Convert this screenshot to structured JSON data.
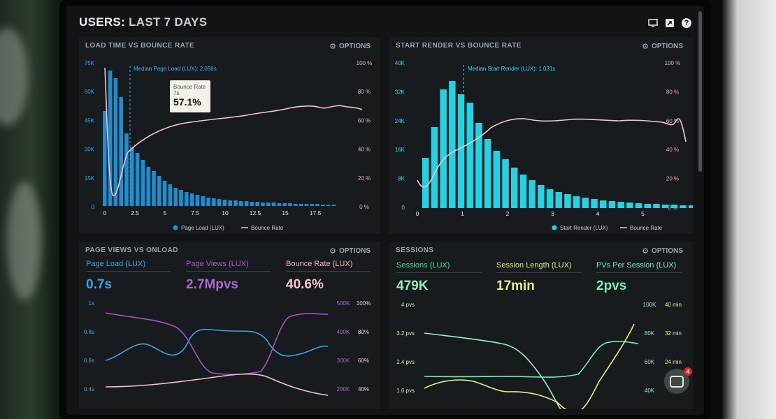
{
  "header": {
    "title_prefix": "USERS:",
    "title_suffix": "LAST 7 DAYS"
  },
  "top_icons": [
    "monitor-icon",
    "share-icon",
    "help-icon"
  ],
  "options_label": "OPTIONS",
  "panels": {
    "load_time": {
      "title": "LOAD TIME VS BOUNCE RATE",
      "median_label": "Median Page Load (LUX): 2.056s",
      "tooltip": {
        "label": "Bounce Rate",
        "sub": "7s",
        "value": "57.1%"
      },
      "left_ticks": [
        "75K",
        "60K",
        "45K",
        "30K",
        "15K",
        "0"
      ],
      "right_ticks": [
        "100 %",
        "80 %",
        "60 %",
        "40 %",
        "20 %",
        "0 %"
      ],
      "x_ticks": [
        "0",
        "2.5",
        "5",
        "7.5",
        "10",
        "12.5",
        "15",
        "17.5"
      ],
      "legend": [
        "Page Load (LUX)",
        "Bounce Rate"
      ]
    },
    "start_render": {
      "title": "START RENDER VS BOUNCE RATE",
      "median_label": "Median Start Render (LUX): 1.031s",
      "left_ticks": [
        "40K",
        "32K",
        "24K",
        "16K",
        "8K",
        "0"
      ],
      "right_ticks": [
        "100 %",
        "80 %",
        "60 %",
        "40 %",
        "20 %",
        "0 %"
      ],
      "x_ticks": [
        "0",
        "1",
        "2",
        "3",
        "4",
        "5"
      ],
      "legend": [
        "Start Render (LUX)",
        "Bounce Rate"
      ]
    },
    "page_views": {
      "title": "PAGE VIEWS VS ONLOAD",
      "metrics": [
        {
          "label": "Page Load (LUX)",
          "value": "0.7s"
        },
        {
          "label": "Page Views (LUX)",
          "value": "2.7Mpvs"
        },
        {
          "label": "Bounce Rate (LUX)",
          "value": "40.6%"
        }
      ],
      "left_ticks": [
        "1s",
        "0.8s",
        "0.6s",
        "0.4s"
      ],
      "right_ticks_a": [
        "500K",
        "400K",
        "300K",
        "200K"
      ],
      "right_ticks_b": [
        "100%",
        "80%",
        "60%",
        "40%"
      ]
    },
    "sessions": {
      "title": "SESSIONS",
      "metrics": [
        {
          "label": "Sessions (LUX)",
          "value": "479K"
        },
        {
          "label": "Session Length (LUX)",
          "value": "17min"
        },
        {
          "label": "PVs Per Session (LUX)",
          "value": "2pvs"
        }
      ],
      "left_ticks": [
        "4 pvs",
        "3.2 pvs",
        "2.4 pvs",
        "1.6 pvs"
      ],
      "right_ticks_a": [
        "100K",
        "80K",
        "60K",
        "40K"
      ],
      "right_ticks_b": [
        "40 min",
        "32 min",
        "24 min"
      ]
    }
  },
  "chat_badge": "4"
}
